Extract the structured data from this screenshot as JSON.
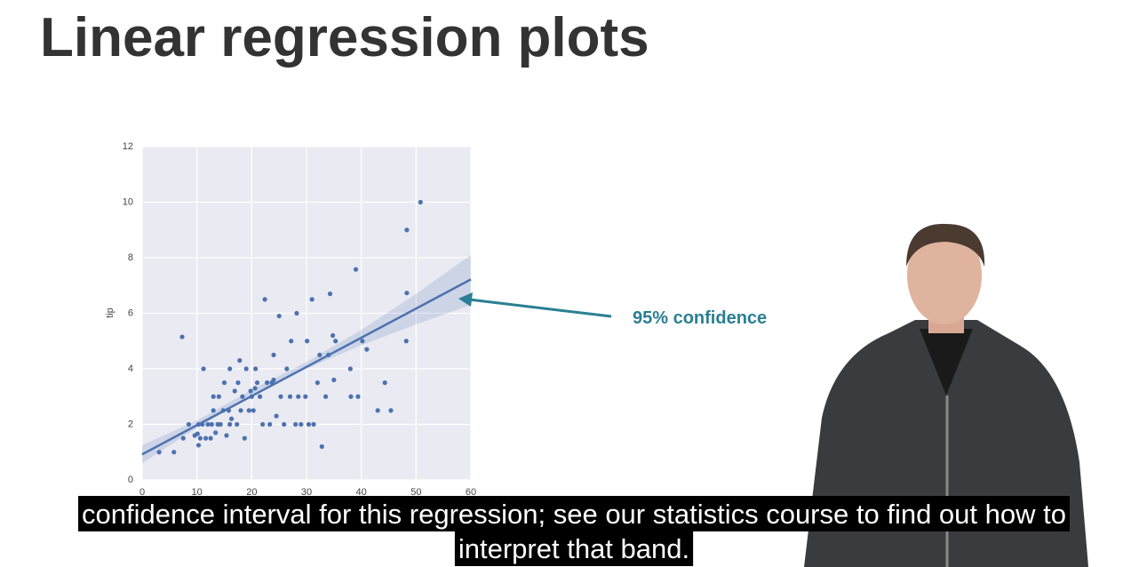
{
  "slide_title": "Linear regression plots",
  "caption": [
    "confidence interval for this regression; see our statistics course to find out how to",
    "interpret that band."
  ],
  "chart_data": {
    "type": "scatter",
    "y_label": "tip",
    "annotation": "95% confidence",
    "color": "#4c72b0",
    "grid": true,
    "xlim": [
      0,
      60
    ],
    "xticks": [
      0,
      10,
      20,
      30,
      40,
      50,
      60
    ],
    "ylim": [
      0,
      12
    ],
    "yticks": [
      0,
      2,
      4,
      6,
      8,
      10,
      12
    ],
    "x": [
      3.1,
      5.8,
      7.3,
      7.5,
      8.5,
      9.6,
      10.1,
      10.3,
      10.6,
      11,
      11.2,
      11.6,
      12,
      12.5,
      12.7,
      13,
      13.4,
      13.8,
      14,
      14.3,
      14.8,
      15,
      15.4,
      15.8,
      16,
      16.3,
      16.9,
      17.3,
      17.5,
      17.8,
      18,
      18.3,
      18.7,
      19,
      19.5,
      19.8,
      20,
      20.3,
      20.7,
      21,
      21.5,
      22,
      22.4,
      22.8,
      23.3,
      23.7,
      24,
      24.5,
      25,
      25.3,
      25.9,
      26.4,
      27,
      27.2,
      28,
      28.2,
      28.5,
      29,
      29.8,
      30.1,
      30.4,
      31,
      31.3,
      32,
      32.4,
      32.8,
      33.5,
      34,
      34.3,
      34.8,
      35,
      35.3,
      38,
      38.1,
      39,
      39.4,
      40.2,
      41,
      43,
      44.3,
      45.4,
      48.2,
      48.3,
      48.3,
      50.8,
      24,
      20.6,
      16,
      13,
      10.3
    ],
    "values": [
      1,
      1,
      5.15,
      1.5,
      2,
      1.6,
      1.66,
      1.25,
      1.5,
      2,
      4,
      1.5,
      2,
      1.5,
      2,
      2.5,
      1.7,
      2,
      3,
      2,
      2.5,
      3.5,
      1.6,
      2.5,
      4,
      2.2,
      3.2,
      2,
      3.5,
      4.3,
      2.5,
      3,
      1.5,
      4,
      2.5,
      3.2,
      3,
      2.5,
      4,
      3.5,
      3,
      2,
      6.5,
      3.5,
      2,
      3.5,
      4.5,
      2.3,
      5.9,
      3,
      2,
      4,
      3,
      5,
      2,
      6,
      3,
      2,
      3,
      5,
      2,
      6.5,
      2,
      3.5,
      4.5,
      1.2,
      3,
      4.5,
      6.7,
      5.2,
      3.6,
      5,
      4,
      3,
      7.58,
      3,
      5,
      4.7,
      2.5,
      3.5,
      2.5,
      5,
      6.73,
      9,
      10,
      3.6,
      3.3,
      2,
      3,
      2
    ],
    "regression_line": {
      "x": [
        0,
        60
      ],
      "values": [
        0.92,
        7.22
      ]
    },
    "confidence_band": {
      "x": [
        0,
        10,
        20,
        30,
        40,
        50,
        60
      ],
      "lower": [
        0.6,
        1.88,
        3.0,
        4.0,
        4.85,
        5.6,
        6.3
      ],
      "upper": [
        1.25,
        2.14,
        3.25,
        4.25,
        5.4,
        6.7,
        8.1
      ]
    }
  }
}
